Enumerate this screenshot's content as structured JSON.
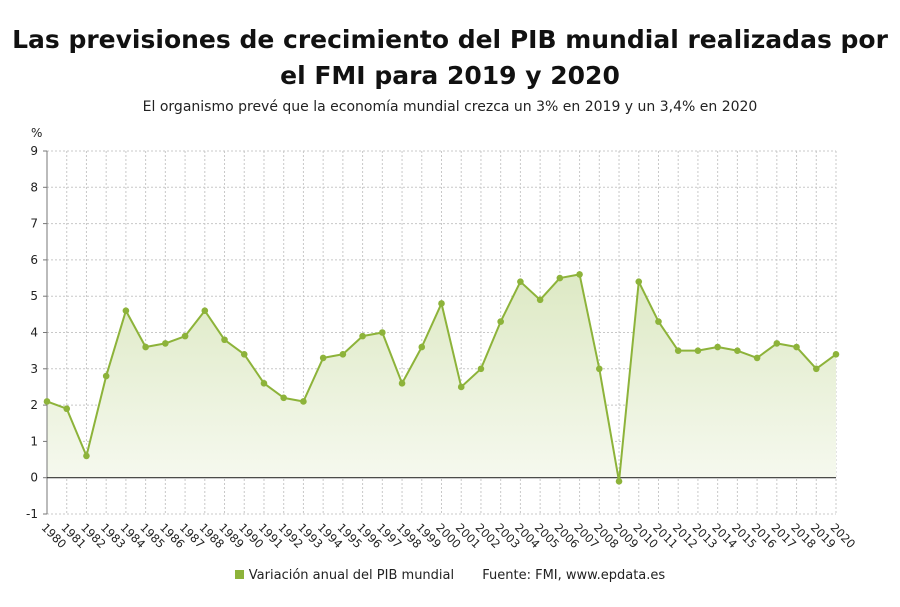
{
  "title": "Las previsiones de crecimiento del PIB mundial realizadas por el FMI para 2019 y 2020",
  "subtitle": "El organismo prevé que la economía mundial crezca un 3% en 2019 y un 3,4% en 2020",
  "legend": {
    "series_label": "Variación anual del PIB mundial",
    "source": "Fuente: FMI, www.epdata.es"
  },
  "colors": {
    "line": "#8db33a",
    "area_top": "#dde9c4",
    "area_bottom": "#f6f9ef",
    "grid": "#c8c8c8",
    "zero_line": "#333333"
  },
  "chart_data": {
    "type": "area",
    "ylabel": "%",
    "ylim": [
      -1,
      9
    ],
    "yticks": [
      -1,
      0,
      1,
      2,
      3,
      4,
      5,
      6,
      7,
      8,
      9
    ],
    "grid": true,
    "legend_position": "bottom",
    "x": [
      "1980",
      "1981",
      "1982",
      "1983",
      "1984",
      "1985",
      "1986",
      "1987",
      "1988",
      "1989",
      "1990",
      "1991",
      "1992",
      "1993",
      "1994",
      "1995",
      "1996",
      "1997",
      "1998",
      "1999",
      "2000",
      "2001",
      "2002",
      "2003",
      "2004",
      "2005",
      "2006",
      "2007",
      "2008",
      "2009",
      "2010",
      "2011",
      "2012",
      "2013",
      "2014",
      "2015",
      "2016",
      "2017",
      "2018",
      "2019",
      "2020"
    ],
    "series": [
      {
        "name": "Variación anual del PIB mundial",
        "values": [
          2.1,
          1.9,
          0.6,
          2.8,
          4.6,
          3.6,
          3.7,
          3.9,
          4.6,
          3.8,
          3.4,
          2.6,
          2.2,
          2.1,
          3.3,
          3.4,
          3.9,
          4.0,
          2.6,
          3.6,
          4.8,
          2.5,
          3.0,
          4.3,
          5.4,
          4.9,
          5.5,
          5.6,
          3.0,
          -0.1,
          5.4,
          4.3,
          3.5,
          3.5,
          3.6,
          3.5,
          3.3,
          3.7,
          3.6,
          3.0,
          3.4
        ]
      }
    ]
  }
}
